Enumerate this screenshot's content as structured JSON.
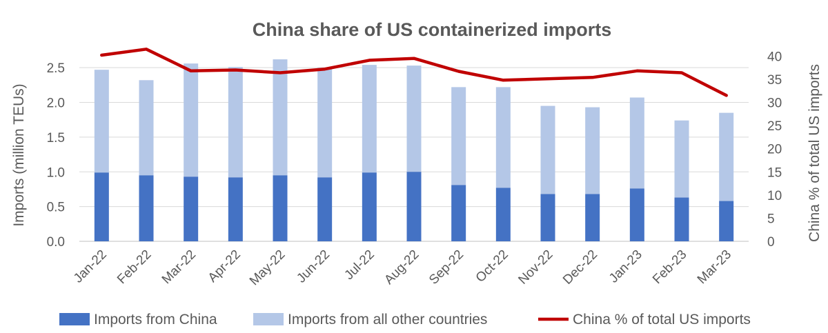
{
  "chart_data": {
    "type": "bar",
    "title": "China share of US containerized imports",
    "categories": [
      "Jan-22",
      "Feb-22",
      "Mar-22",
      "Apr-22",
      "May-22",
      "Jun-22",
      "Jul-22",
      "Aug-22",
      "Sep-22",
      "Oct-22",
      "Nov-22",
      "Dec-22",
      "Jan-23",
      "Feb-23",
      "Mar-23"
    ],
    "series": [
      {
        "name": "Imports from China",
        "kind": "stacked-bar",
        "axis": "left",
        "color": "#4472c4",
        "values": [
          0.99,
          0.95,
          0.93,
          0.92,
          0.95,
          0.92,
          0.99,
          1.0,
          0.81,
          0.77,
          0.68,
          0.68,
          0.76,
          0.63,
          0.58
        ]
      },
      {
        "name": "Imports from all other countries",
        "kind": "stacked-bar",
        "axis": "left",
        "color": "#b4c7e7",
        "values": [
          1.48,
          1.37,
          1.63,
          1.59,
          1.67,
          1.58,
          1.55,
          1.53,
          1.41,
          1.45,
          1.27,
          1.25,
          1.31,
          1.11,
          1.27
        ]
      },
      {
        "name": "China % of total US imports",
        "kind": "line",
        "axis": "right",
        "color": "#c00000",
        "values": [
          40.2,
          41.5,
          36.8,
          37.0,
          36.4,
          37.2,
          39.1,
          39.5,
          36.7,
          34.8,
          35.1,
          35.4,
          36.8,
          36.4,
          31.5
        ]
      }
    ],
    "ylabel": "Imports (million TEUs)",
    "ylim": [
      0,
      2.7
    ],
    "yticks": [
      "0.0",
      "0.5",
      "1.0",
      "1.5",
      "2.0",
      "2.5"
    ],
    "ytick_values": [
      0,
      0.5,
      1.0,
      1.5,
      2.0,
      2.5
    ],
    "y2label": "China % of total US imports",
    "y2lim": [
      0,
      40.5
    ],
    "y2ticks": [
      "0",
      "5",
      "10",
      "15",
      "20",
      "25",
      "30",
      "35",
      "40"
    ],
    "y2tick_values": [
      0,
      5,
      10,
      15,
      20,
      25,
      30,
      35,
      40
    ],
    "legend_position": "bottom",
    "grid": true
  }
}
